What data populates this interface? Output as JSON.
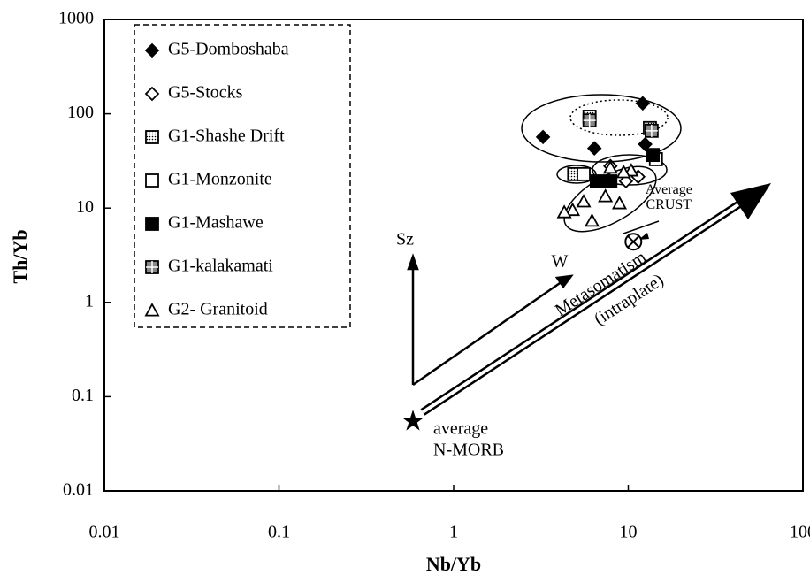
{
  "chart_data": {
    "type": "scatter",
    "x_label": "Nb/Yb",
    "y_label": "Th/Yb",
    "xscale": "log",
    "yscale": "log",
    "xlim": [
      0.01,
      100
    ],
    "ylim": [
      0.01,
      1000
    ],
    "xticks": [
      0.01,
      0.1,
      1,
      10,
      100
    ],
    "yticks": [
      0.01,
      0.1,
      1,
      10,
      100,
      1000
    ],
    "legend": "upper left",
    "series": [
      {
        "name": "G5-Domboshaba",
        "color": "#000",
        "marker": "diamond-filled",
        "x": [
          3.25,
          6.4,
          12.1,
          12.5,
          14.1
        ],
        "y": [
          56.7,
          43,
          129,
          47.6,
          34.5
        ]
      },
      {
        "name": "G5-Stocks",
        "color": "#000",
        "marker": "diamond-open",
        "x": [
          7.9,
          9.7,
          11.4
        ],
        "y": [
          27.9,
          19.3,
          21.5
        ]
      },
      {
        "name": "G1-Shashe Drift",
        "color": "#000",
        "marker": "square-dotted",
        "x": [
          6.0,
          13.3,
          4.9
        ],
        "y": [
          93,
          70.5,
          22.9
        ]
      },
      {
        "name": "G1-Monzonite",
        "color": "#000",
        "marker": "square-open",
        "x": [
          5.55,
          14.4
        ],
        "y": [
          22.9,
          33
        ]
      },
      {
        "name": "G1-Mashawe",
        "color": "#000",
        "marker": "square-filled",
        "x": [
          6.6,
          7.9,
          13.8
        ],
        "y": [
          19.2,
          19.2,
          36.6
        ]
      },
      {
        "name": "G1-kalakamati",
        "color": "#000",
        "marker": "square-cross",
        "x": [
          6.0,
          13.6
        ],
        "y": [
          85,
          66
        ]
      },
      {
        "name": "G2- Granitoid",
        "color": "#000",
        "marker": "triangle-open",
        "x": [
          4.8,
          5.55,
          6.2,
          7.4,
          8.9,
          10.4,
          7.9,
          9.4,
          4.3
        ],
        "y": [
          9.5,
          11.7,
          7.3,
          13.3,
          11.2,
          24.9,
          26.7,
          23.9,
          9.0
        ]
      }
    ],
    "points": [
      {
        "label": [
          "average",
          "N-MORB"
        ],
        "marker": "star",
        "x": 0.585,
        "y": 0.055
      },
      {
        "label": [
          "Average",
          "CRUST"
        ],
        "marker": "circle-cross",
        "x": 10.7,
        "y": 4.4
      }
    ],
    "annotations": [
      "Sz",
      "W",
      "Metasomatism",
      "(intraplate)"
    ]
  }
}
